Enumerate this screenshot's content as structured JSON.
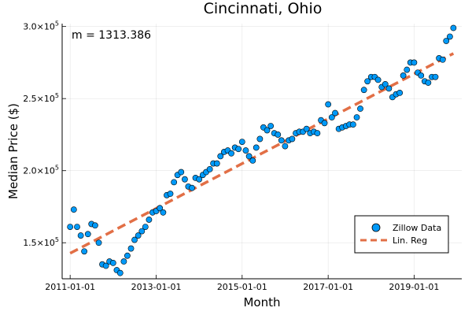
{
  "chart_data": {
    "type": "scatter",
    "title": "Cincinnati, Ohio",
    "xlabel": "Month",
    "ylabel": "Median Price ($)",
    "xlim": [
      "2010-10-25",
      "2020-02-10"
    ],
    "ylim": [
      125000,
      302000
    ],
    "x_ticks": [
      "2011-01-01",
      "2013-01-01",
      "2015-01-01",
      "2017-01-01",
      "2019-01-01"
    ],
    "y_ticks": [
      {
        "value": 150000,
        "mantissa": "1.5×10",
        "exp": "5"
      },
      {
        "value": 200000,
        "mantissa": "2.0×10",
        "exp": "5"
      },
      {
        "value": 250000,
        "mantissa": "2.5×10",
        "exp": "5"
      },
      {
        "value": 300000,
        "mantissa": "3.0×10",
        "exp": "5"
      }
    ],
    "grid": true,
    "legend_position": "bottom-right",
    "annotation": "m = 1313.386",
    "colors": {
      "scatter": "#009af9",
      "regression": "#e26f46"
    },
    "series": [
      {
        "name": "Zillow Data",
        "kind": "scatter",
        "x": [
          "2011-01-01",
          "2011-02-01",
          "2011-03-01",
          "2011-04-01",
          "2011-05-01",
          "2011-06-01",
          "2011-07-01",
          "2011-08-01",
          "2011-09-01",
          "2011-10-01",
          "2011-11-01",
          "2011-12-01",
          "2012-01-01",
          "2012-02-01",
          "2012-03-01",
          "2012-04-01",
          "2012-05-01",
          "2012-06-01",
          "2012-07-01",
          "2012-08-01",
          "2012-09-01",
          "2012-10-01",
          "2012-11-01",
          "2012-12-01",
          "2013-01-01",
          "2013-02-01",
          "2013-03-01",
          "2013-04-01",
          "2013-05-01",
          "2013-06-01",
          "2013-07-01",
          "2013-08-01",
          "2013-09-01",
          "2013-10-01",
          "2013-11-01",
          "2013-12-01",
          "2014-01-01",
          "2014-02-01",
          "2014-03-01",
          "2014-04-01",
          "2014-05-01",
          "2014-06-01",
          "2014-07-01",
          "2014-08-01",
          "2014-09-01",
          "2014-10-01",
          "2014-11-01",
          "2014-12-01",
          "2015-01-01",
          "2015-02-01",
          "2015-03-01",
          "2015-04-01",
          "2015-05-01",
          "2015-06-01",
          "2015-07-01",
          "2015-08-01",
          "2015-09-01",
          "2015-10-01",
          "2015-11-01",
          "2015-12-01",
          "2016-01-01",
          "2016-02-01",
          "2016-03-01",
          "2016-04-01",
          "2016-05-01",
          "2016-06-01",
          "2016-07-01",
          "2016-08-01",
          "2016-09-01",
          "2016-10-01",
          "2016-11-01",
          "2016-12-01",
          "2017-01-01",
          "2017-02-01",
          "2017-03-01",
          "2017-04-01",
          "2017-05-01",
          "2017-06-01",
          "2017-07-01",
          "2017-08-01",
          "2017-09-01",
          "2017-10-01",
          "2017-11-01",
          "2017-12-01",
          "2018-01-01",
          "2018-02-01",
          "2018-03-01",
          "2018-04-01",
          "2018-05-01",
          "2018-06-01",
          "2018-07-01",
          "2018-08-01",
          "2018-09-01",
          "2018-10-01",
          "2018-11-01",
          "2018-12-01",
          "2019-01-01",
          "2019-02-01",
          "2019-03-01",
          "2019-04-01",
          "2019-05-01",
          "2019-06-01",
          "2019-07-01",
          "2019-08-01",
          "2019-09-01",
          "2019-10-01",
          "2019-11-01",
          "2019-12-01"
        ],
        "y": [
          161000,
          173000,
          161000,
          155000,
          144000,
          156000,
          163000,
          162000,
          150000,
          135000,
          134000,
          137000,
          136000,
          131000,
          129000,
          137000,
          141000,
          146000,
          152000,
          155000,
          158000,
          161000,
          166000,
          171000,
          172000,
          174000,
          171000,
          183000,
          184000,
          192000,
          197000,
          199000,
          194000,
          189000,
          188000,
          195000,
          194000,
          197000,
          199000,
          201000,
          205000,
          205000,
          210000,
          213000,
          214000,
          212000,
          216000,
          215000,
          220000,
          214000,
          210000,
          207000,
          216000,
          222000,
          230000,
          228000,
          231000,
          226000,
          225000,
          221000,
          217000,
          221000,
          222000,
          226000,
          227000,
          227000,
          229000,
          226000,
          227000,
          226000,
          235000,
          233000,
          246000,
          237000,
          240000,
          229000,
          230000,
          231000,
          232000,
          232000,
          237000,
          243000,
          256000,
          262000,
          265000,
          265000,
          263000,
          258000,
          260000,
          257000,
          251000,
          253000,
          254000,
          266000,
          270000,
          275000,
          275000,
          268000,
          266000,
          262000,
          261000,
          265000,
          265000,
          278000,
          277000,
          290000,
          293000,
          299000
        ]
      },
      {
        "name": "Lin. Reg",
        "kind": "line",
        "x": [
          "2011-01-01",
          "2019-12-01"
        ],
        "y": [
          142700,
          281300
        ]
      }
    ]
  }
}
